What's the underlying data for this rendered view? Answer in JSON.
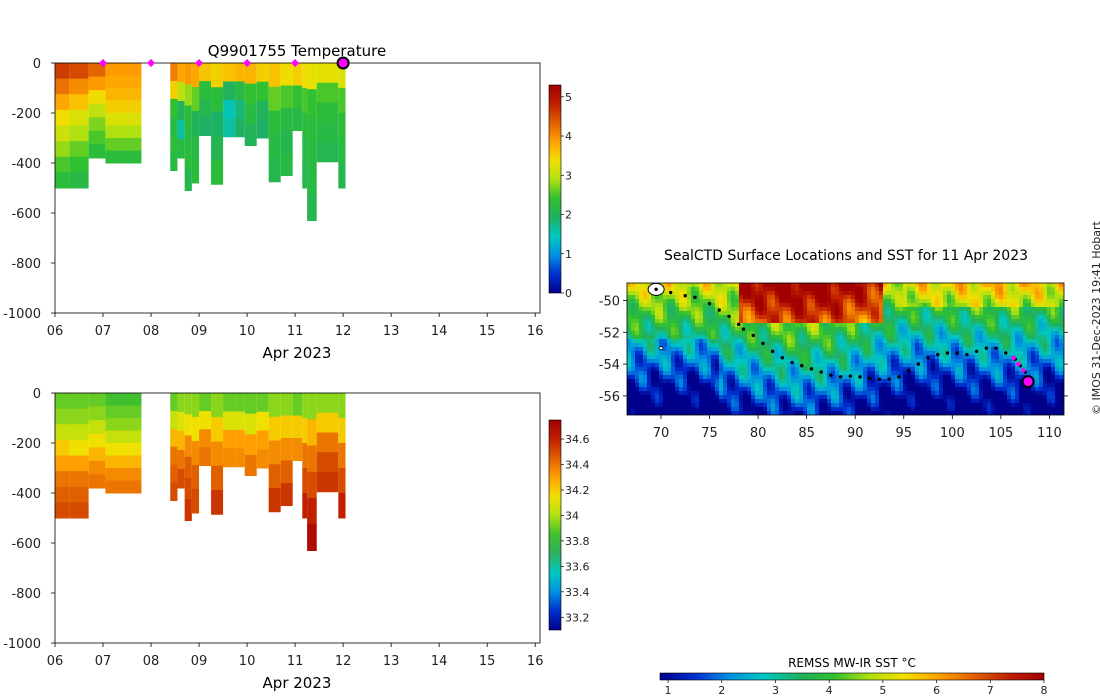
{
  "credit": "© IMOS 31-Dec-2023 19:41 Hobart",
  "colors": {
    "temp_scale": [
      "#00008b",
      "#0030d0",
      "#0090e0",
      "#00c8c0",
      "#20b060",
      "#30c030",
      "#b0e010",
      "#f0e000",
      "#ffa000",
      "#e06000",
      "#c02000",
      "#a00000"
    ],
    "sal_scale": [
      "#00008b",
      "#0030d0",
      "#0090e0",
      "#00c8c0",
      "#30b060",
      "#40c030",
      "#b0e010",
      "#f0e000",
      "#ffa000",
      "#e06000",
      "#c02000",
      "#a00000"
    ],
    "track": "#000000",
    "profile_marker": "#ff00ff",
    "current_position": "#ff00ff"
  },
  "chart_data": [
    {
      "type": "heatmap",
      "id": "temperature",
      "title": "Q9901755  Temperature",
      "xlabel": "Apr 2023",
      "x_ticks": [
        "06",
        "07",
        "08",
        "09",
        "10",
        "11",
        "12",
        "13",
        "14",
        "15",
        "16"
      ],
      "xlim": [
        6,
        16.1
      ],
      "ylim": [
        -1000,
        0
      ],
      "y_ticks": [
        0,
        -200,
        -400,
        -600,
        -800,
        -1000
      ],
      "colorbar": {
        "min": 0,
        "max": 5.3,
        "ticks": [
          0,
          1,
          2,
          3,
          4,
          5
        ]
      },
      "surface_markers_x": [
        7.0,
        8.0,
        9.0,
        10.0,
        11.0
      ],
      "current_marker_x": 12.0,
      "profiles": [
        {
          "x0": 6.0,
          "x1": 6.3,
          "max_depth": -500,
          "values": [
            4.6,
            4.2,
            3.8,
            3.4,
            3.1,
            2.8,
            2.5,
            2.3
          ]
        },
        {
          "x0": 6.3,
          "x1": 6.7,
          "max_depth": -500,
          "values": [
            4.5,
            4.0,
            3.6,
            3.2,
            2.9,
            2.6,
            2.4,
            2.2
          ]
        },
        {
          "x0": 6.7,
          "x1": 7.05,
          "max_depth": -380,
          "values": [
            4.3,
            3.9,
            3.4,
            3.0,
            2.7,
            2.5,
            2.3
          ]
        },
        {
          "x0": 7.05,
          "x1": 7.8,
          "max_depth": -400,
          "values": [
            3.9,
            3.8,
            3.7,
            3.5,
            3.2,
            2.9,
            2.6,
            2.3
          ]
        },
        {
          "x0": 8.4,
          "x1": 8.55,
          "max_depth": -430,
          "values": [
            4.1,
            3.5,
            2.4,
            2.2,
            2.3,
            2.2
          ]
        },
        {
          "x0": 8.55,
          "x1": 8.7,
          "max_depth": -380,
          "values": [
            3.8,
            3.0,
            2.0,
            1.6,
            2.2
          ]
        },
        {
          "x0": 8.7,
          "x1": 8.85,
          "max_depth": -510,
          "values": [
            3.9,
            2.8,
            2.3,
            2.2,
            2.3,
            2.1
          ]
        },
        {
          "x0": 8.85,
          "x1": 9.0,
          "max_depth": -480,
          "values": [
            3.8,
            2.6,
            2.0,
            2.2,
            2.3
          ]
        },
        {
          "x0": 9.0,
          "x1": 9.25,
          "max_depth": -290,
          "values": [
            3.6,
            2.3,
            2.1,
            1.9
          ]
        },
        {
          "x0": 9.25,
          "x1": 9.5,
          "max_depth": -485,
          "values": [
            3.5,
            2.3,
            1.9,
            2.1,
            2.3
          ]
        },
        {
          "x0": 9.5,
          "x1": 9.75,
          "max_depth": -295,
          "values": [
            3.6,
            2.0,
            1.5,
            1.6
          ]
        },
        {
          "x0": 9.75,
          "x1": 9.95,
          "max_depth": -295,
          "values": [
            3.7,
            2.2,
            1.8,
            1.9
          ]
        },
        {
          "x0": 9.95,
          "x1": 10.2,
          "max_depth": -330,
          "values": [
            3.7,
            2.4,
            2.2,
            2.0
          ]
        },
        {
          "x0": 10.2,
          "x1": 10.45,
          "max_depth": -300,
          "values": [
            3.5,
            2.4,
            2.0,
            1.9
          ]
        },
        {
          "x0": 10.45,
          "x1": 10.7,
          "max_depth": -475,
          "values": [
            3.6,
            2.6,
            2.3,
            2.2,
            2.1
          ]
        },
        {
          "x0": 10.7,
          "x1": 10.95,
          "max_depth": -450,
          "values": [
            3.4,
            2.5,
            2.2,
            2.1,
            2.2
          ]
        },
        {
          "x0": 10.95,
          "x1": 11.15,
          "max_depth": -270,
          "values": [
            3.5,
            2.4,
            2.2
          ]
        },
        {
          "x0": 11.15,
          "x1": 11.25,
          "max_depth": -500,
          "values": [
            3.4,
            2.5,
            2.3,
            2.2,
            2.1
          ]
        },
        {
          "x0": 11.25,
          "x1": 11.45,
          "max_depth": -630,
          "values": [
            3.3,
            2.4,
            2.3,
            2.2,
            2.2,
            2.1
          ]
        },
        {
          "x0": 11.45,
          "x1": 11.9,
          "max_depth": -395,
          "values": [
            3.3,
            2.5,
            2.3,
            2.2,
            2.1
          ]
        },
        {
          "x0": 11.9,
          "x1": 12.05,
          "max_depth": -500,
          "values": [
            3.2,
            2.5,
            2.3,
            2.2,
            2.1
          ]
        }
      ]
    },
    {
      "type": "heatmap",
      "id": "salinity",
      "title": "",
      "xlabel": "Apr 2023",
      "x_ticks": [
        "06",
        "07",
        "08",
        "09",
        "10",
        "11",
        "12",
        "13",
        "14",
        "15",
        "16"
      ],
      "xlim": [
        6,
        16.1
      ],
      "ylim": [
        -1000,
        0
      ],
      "y_ticks": [
        0,
        -200,
        -400,
        -600,
        -800,
        -1000
      ],
      "colorbar": {
        "min": 33.1,
        "max": 34.75,
        "ticks": [
          33.2,
          33.4,
          33.6,
          33.8,
          34,
          34.2,
          34.4,
          34.6
        ],
        "tick_labels": [
          "33.2",
          "33.4",
          "33.6",
          "33.8",
          "34",
          "34.2",
          "34.4",
          "34.6"
        ]
      },
      "profiles": [
        {
          "x0": 6.0,
          "x1": 6.3,
          "max_depth": -500,
          "values": [
            33.9,
            33.95,
            34.05,
            34.2,
            34.3,
            34.4,
            34.45,
            34.5
          ]
        },
        {
          "x0": 6.3,
          "x1": 6.7,
          "max_depth": -500,
          "values": [
            33.9,
            33.95,
            34.05,
            34.15,
            34.3,
            34.4,
            34.45,
            34.5
          ]
        },
        {
          "x0": 6.7,
          "x1": 7.05,
          "max_depth": -380,
          "values": [
            33.9,
            33.95,
            34.05,
            34.15,
            34.25,
            34.35,
            34.4
          ]
        },
        {
          "x0": 7.05,
          "x1": 7.8,
          "max_depth": -400,
          "values": [
            33.85,
            33.9,
            33.95,
            34.05,
            34.15,
            34.25,
            34.35,
            34.4
          ]
        },
        {
          "x0": 8.4,
          "x1": 8.55,
          "max_depth": -430,
          "values": [
            33.9,
            34.05,
            34.25,
            34.4,
            34.45,
            34.5
          ]
        },
        {
          "x0": 8.55,
          "x1": 8.7,
          "max_depth": -380,
          "values": [
            33.95,
            34.1,
            34.25,
            34.4,
            34.5
          ]
        },
        {
          "x0": 8.7,
          "x1": 8.85,
          "max_depth": -510,
          "values": [
            33.95,
            34.15,
            34.35,
            34.45,
            34.5,
            34.55
          ]
        },
        {
          "x0": 8.85,
          "x1": 9.0,
          "max_depth": -480,
          "values": [
            33.95,
            34.15,
            34.35,
            34.45,
            34.5
          ]
        },
        {
          "x0": 9.0,
          "x1": 9.25,
          "max_depth": -290,
          "values": [
            33.9,
            34.15,
            34.35,
            34.4
          ]
        },
        {
          "x0": 9.25,
          "x1": 9.5,
          "max_depth": -485,
          "values": [
            33.95,
            34.2,
            34.35,
            34.45,
            34.55
          ]
        },
        {
          "x0": 9.5,
          "x1": 9.75,
          "max_depth": -295,
          "values": [
            33.9,
            34.1,
            34.3,
            34.35
          ]
        },
        {
          "x0": 9.75,
          "x1": 9.95,
          "max_depth": -295,
          "values": [
            33.9,
            34.1,
            34.3,
            34.35
          ]
        },
        {
          "x0": 9.95,
          "x1": 10.2,
          "max_depth": -330,
          "values": [
            33.9,
            34.1,
            34.3,
            34.4
          ]
        },
        {
          "x0": 10.2,
          "x1": 10.45,
          "max_depth": -300,
          "values": [
            33.9,
            34.15,
            34.3,
            34.35
          ]
        },
        {
          "x0": 10.45,
          "x1": 10.7,
          "max_depth": -475,
          "values": [
            33.95,
            34.2,
            34.35,
            34.45,
            34.55
          ]
        },
        {
          "x0": 10.7,
          "x1": 10.95,
          "max_depth": -450,
          "values": [
            33.95,
            34.2,
            34.35,
            34.45,
            34.55
          ]
        },
        {
          "x0": 10.95,
          "x1": 11.15,
          "max_depth": -270,
          "values": [
            33.9,
            34.2,
            34.35
          ]
        },
        {
          "x0": 11.15,
          "x1": 11.25,
          "max_depth": -500,
          "values": [
            33.95,
            34.2,
            34.4,
            34.5,
            34.6
          ]
        },
        {
          "x0": 11.25,
          "x1": 11.45,
          "max_depth": -630,
          "values": [
            33.95,
            34.25,
            34.4,
            34.5,
            34.6,
            34.7
          ]
        },
        {
          "x0": 11.45,
          "x1": 11.9,
          "max_depth": -395,
          "values": [
            33.95,
            34.2,
            34.4,
            34.5,
            34.55
          ]
        },
        {
          "x0": 11.9,
          "x1": 12.05,
          "max_depth": -500,
          "values": [
            33.95,
            34.2,
            34.4,
            34.5,
            34.6
          ]
        }
      ]
    },
    {
      "type": "heatmap",
      "id": "sst_map",
      "title": "SealCTD Surface Locations and SST for 11 Apr 2023",
      "lon_range": [
        66.5,
        111.5
      ],
      "lat_range": [
        -57.2,
        -48.9
      ],
      "lon_ticks": [
        70,
        75,
        80,
        85,
        90,
        95,
        100,
        105,
        110
      ],
      "lat_ticks": [
        -50,
        -52,
        -54,
        -56
      ],
      "colorbar": {
        "label": "REMSS MW-IR SST °C",
        "min": 0.85,
        "max": 8,
        "ticks": [
          1,
          2,
          3,
          4,
          5,
          6,
          7,
          8
        ]
      },
      "track": [
        [
          69.5,
          -49.3
        ],
        [
          71.0,
          -49.5
        ],
        [
          72.5,
          -49.7
        ],
        [
          73.5,
          -49.8
        ],
        [
          75.0,
          -50.2
        ],
        [
          76.0,
          -50.6
        ],
        [
          77.0,
          -51.0
        ],
        [
          78.0,
          -51.5
        ],
        [
          78.5,
          -51.8
        ],
        [
          79.5,
          -52.2
        ],
        [
          80.5,
          -52.7
        ],
        [
          81.5,
          -53.2
        ],
        [
          82.5,
          -53.6
        ],
        [
          83.5,
          -53.9
        ],
        [
          84.5,
          -54.1
        ],
        [
          85.5,
          -54.3
        ],
        [
          86.5,
          -54.5
        ],
        [
          87.5,
          -54.7
        ],
        [
          88.5,
          -54.8
        ],
        [
          89.5,
          -54.75
        ],
        [
          90.5,
          -54.8
        ],
        [
          91.5,
          -54.9
        ],
        [
          92.5,
          -54.95
        ],
        [
          93.5,
          -54.95
        ],
        [
          94.5,
          -54.8
        ],
        [
          95.5,
          -54.4
        ],
        [
          96.5,
          -54.0
        ],
        [
          97.5,
          -53.6
        ],
        [
          98.5,
          -53.4
        ],
        [
          99.5,
          -53.3
        ],
        [
          100.5,
          -53.3
        ],
        [
          101.5,
          -53.4
        ],
        [
          102.5,
          -53.2
        ],
        [
          103.5,
          -53.0
        ],
        [
          104.5,
          -53.0
        ],
        [
          105.5,
          -53.3
        ],
        [
          106.5,
          -53.7
        ],
        [
          107.0,
          -54.1
        ],
        [
          107.5,
          -54.5
        ],
        [
          107.8,
          -55.0
        ]
      ],
      "profile_points": [
        [
          106.3,
          -53.6
        ],
        [
          106.8,
          -54.0
        ],
        [
          107.3,
          -54.4
        ]
      ],
      "current_position": [
        107.8,
        -55.1
      ]
    }
  ]
}
